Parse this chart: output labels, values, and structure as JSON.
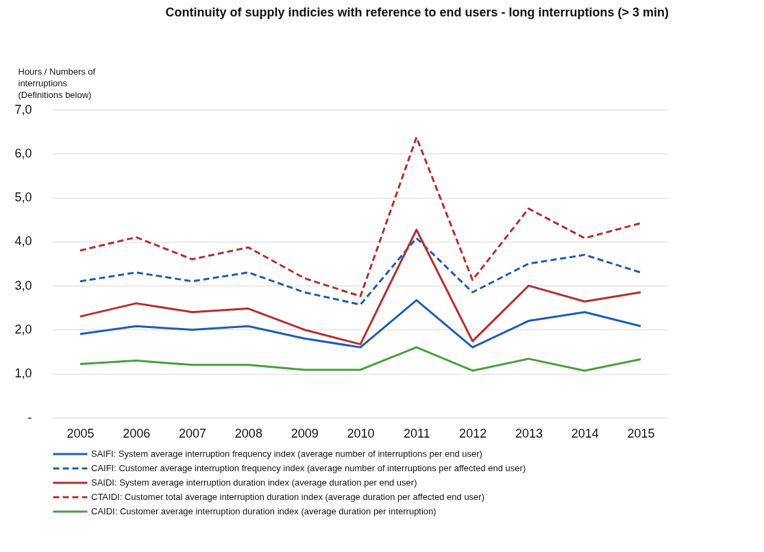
{
  "chart_data": {
    "type": "line",
    "title": "Continuity of supply indicies with reference to end users - long interruptions (> 3 min)",
    "ylabel": "Hours / Numbers of interruptions (Definitions below)",
    "categories": [
      "2005",
      "2006",
      "2007",
      "2008",
      "2009",
      "2010",
      "2011",
      "2012",
      "2013",
      "2014",
      "2015"
    ],
    "series": [
      {
        "name": "SAIFI: System average interruption frequency index (average number of interruptions per end user)",
        "color": "#1f5cb5",
        "line_style": "solid",
        "values": [
          1.9,
          2.08,
          2.0,
          2.08,
          1.8,
          1.6,
          2.67,
          1.6,
          2.2,
          2.4,
          2.08
        ]
      },
      {
        "name": "CAIFI: Customer average interruption frequency index (average number of interruptions per affected end user)",
        "color": "#1f5cb5",
        "line_style": "dashed",
        "values": [
          3.1,
          3.3,
          3.1,
          3.3,
          2.85,
          2.57,
          4.08,
          2.85,
          3.5,
          3.7,
          3.3
        ]
      },
      {
        "name": "SAIDI: System average interruption duration index (average duration per end user)",
        "color": "#b22f2f",
        "line_style": "solid",
        "values": [
          2.3,
          2.6,
          2.4,
          2.48,
          2.0,
          1.67,
          4.27,
          1.74,
          3.0,
          2.64,
          2.85
        ]
      },
      {
        "name": "CTAIDI: Customer total average interruption duration index (average duration per affected end user)",
        "color": "#b22f2f",
        "line_style": "dashed",
        "values": [
          3.8,
          4.1,
          3.6,
          3.87,
          3.17,
          2.76,
          6.37,
          3.13,
          4.75,
          4.08,
          4.42
        ]
      },
      {
        "name": "CAIDI: Customer average interruption duration index (average duration per interruption)",
        "color": "#4a9e3e",
        "line_style": "solid",
        "values": [
          1.22,
          1.3,
          1.2,
          1.2,
          1.09,
          1.09,
          1.6,
          1.07,
          1.34,
          1.07,
          1.33
        ]
      }
    ],
    "ylim": [
      0,
      7
    ],
    "yticks": [
      {
        "value": 0,
        "label": "-"
      },
      {
        "value": 1,
        "label": "1,0"
      },
      {
        "value": 2,
        "label": "2,0"
      },
      {
        "value": 3,
        "label": "3,0"
      },
      {
        "value": 4,
        "label": "4,0"
      },
      {
        "value": 5,
        "label": "5,0"
      },
      {
        "value": 6,
        "label": "6,0"
      },
      {
        "value": 7,
        "label": "7,0"
      }
    ],
    "grid": "y",
    "legend": "bottom",
    "marker": "none"
  }
}
